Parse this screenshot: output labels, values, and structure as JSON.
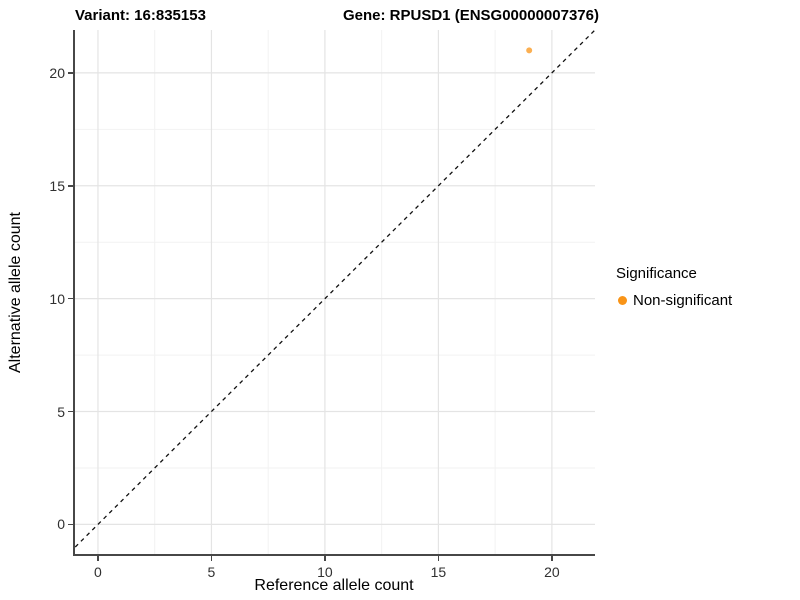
{
  "figure": {
    "title_left": "Variant: 16:835153",
    "title_right": "Gene: RPUSD1 (ENSG00000007376)"
  },
  "chart_data": {
    "type": "scatter",
    "title_left": "Variant: 16:835153",
    "title_right": "Gene: RPUSD1 (ENSG00000007376)",
    "xlabel": "Reference allele count",
    "ylabel": "Alternative allele count",
    "xlim": [
      -1.1,
      21.9
    ],
    "ylim": [
      -1.4,
      21.9
    ],
    "x_ticks": [
      0,
      5,
      10,
      15,
      20
    ],
    "y_ticks": [
      0,
      5,
      10,
      15,
      20
    ],
    "x_minor_ticks": [
      2.5,
      7.5,
      12.5,
      17.5
    ],
    "y_minor_ticks": [
      2.5,
      7.5,
      12.5,
      17.5
    ],
    "grid": "major and minor gridlines on white background",
    "points": [
      {
        "x": 19,
        "y": 21,
        "series": "Non-significant"
      }
    ],
    "point_color": "#F99417",
    "point_alpha": 0.75,
    "point_radius": 3,
    "identity_line": {
      "equation": "y = x",
      "style": "dashed",
      "color": "#111111"
    },
    "legend": {
      "title": "Significance",
      "position": "right",
      "entries": [
        {
          "label": "Non-significant",
          "color": "#F99417"
        }
      ]
    }
  },
  "colors": {
    "background": "#FFFFFF",
    "grid_major": "#E4E4E4",
    "grid_minor": "#F2F2F2",
    "axis_line": "#474747",
    "tick_mark": "#474747",
    "tick_label": "#303030",
    "title": "#000000",
    "point": "#F99417"
  }
}
